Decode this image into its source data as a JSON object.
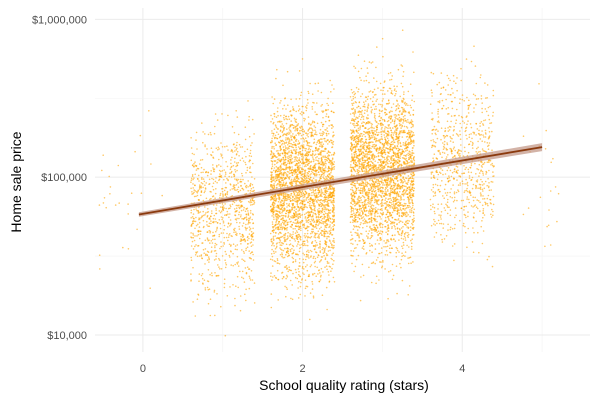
{
  "chart_data": {
    "type": "scatter",
    "title": "",
    "xlabel": "School quality rating (stars)",
    "ylabel": "Home sale price",
    "y_scale": "log10",
    "xlim": [
      -0.6,
      5.6
    ],
    "ylim": [
      7800,
      1180000
    ],
    "x_ticks": [
      0,
      2,
      4
    ],
    "x_tick_labels": [
      "0",
      "2",
      "4"
    ],
    "y_ticks": [
      10000,
      100000,
      1000000
    ],
    "y_tick_labels": [
      "$10,000",
      "$100,000",
      "$1,000,000"
    ],
    "grid": true,
    "legend": "none",
    "point_color": "#FFA500",
    "trend_color": "#8B3A0E",
    "band_color": "#C49A8A",
    "points": {
      "jitter_width": 0.4,
      "groups": [
        {
          "x": -0.5,
          "n": 18,
          "median": 60000
        },
        {
          "x": 0,
          "n": 12,
          "median": 75000
        },
        {
          "x": 1,
          "n": 900,
          "median": 62000
        },
        {
          "x": 2,
          "n": 2800,
          "median": 85000
        },
        {
          "x": 3,
          "n": 2800,
          "median": 110000
        },
        {
          "x": 4,
          "n": 700,
          "median": 130000
        },
        {
          "x": 5,
          "n": 20,
          "median": 100000
        }
      ]
    },
    "trend": {
      "x_start": -0.05,
      "x_end": 5.0,
      "y_start": 58000,
      "y_end": 155000
    }
  }
}
